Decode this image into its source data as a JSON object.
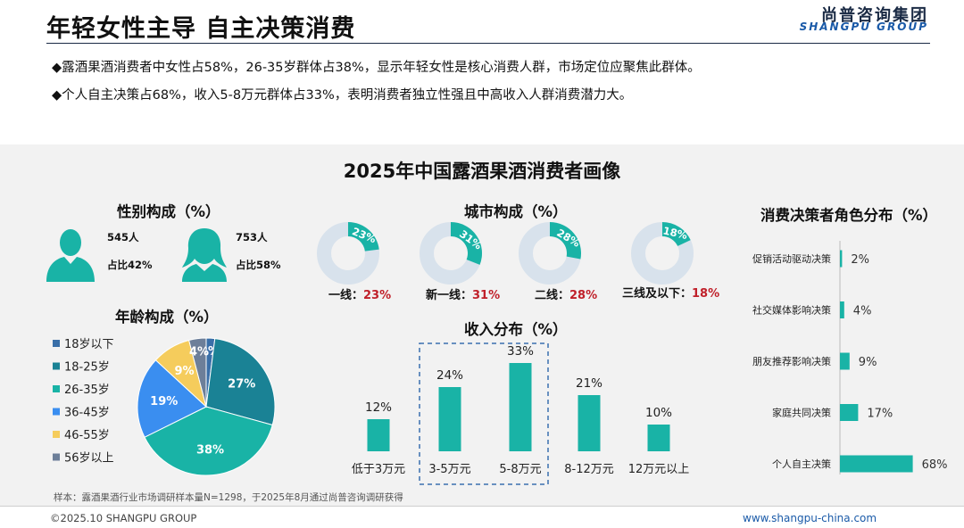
{
  "header": {
    "title": "年轻女性主导 自主决策消费",
    "brand_cn": "尚普咨询集团",
    "brand_en": "SHANGPU GROUP"
  },
  "bullets": [
    "◆露酒果酒消费者中女性占58%，26-35岁群体占38%，显示年轻女性是核心消费人群，市场定位应聚焦此群体。",
    "◆个人自主决策占68%，收入5-8万元群体占33%，表明消费者独立性强且中高收入人群消费潜力大。"
  ],
  "panel_title": "2025年中国露酒果酒消费者画像",
  "gender": {
    "title": "性别构成（%）",
    "male_count": "545人",
    "male_share": "占比42%",
    "female_count": "753人",
    "female_share": "占比58%"
  },
  "city_title": "城市构成（%）",
  "income_title": "收入分布（%）",
  "age_title": "年龄构成（%）",
  "role_title": "消费决策者角色分布（%）",
  "footnote": "样本：露酒果酒行业市场调研样本量N=1298，于2025年8月通过尚普咨询调研获得",
  "footer": {
    "copyright": "©2025.10 SHANGPU GROUP",
    "website": "www.shangpu-china.com"
  },
  "colors": {
    "teal": "#19b3a6",
    "ring": "#d8e2ec",
    "red": "#c0202a",
    "age": [
      "#3a6fa8",
      "#1a8295",
      "#19b3a6",
      "#3a8ef0",
      "#f5cc5c",
      "#6d7f99"
    ]
  },
  "chart_data": [
    {
      "type": "pie",
      "title": "城市构成（%）",
      "categories": [
        "一线",
        "新一线",
        "二线",
        "三线及以下"
      ],
      "label_texts": [
        "一线：",
        "新一线：",
        "二线：",
        "三线及以下："
      ],
      "values": [
        23,
        31,
        28,
        18
      ],
      "value_labels": [
        "23%",
        "31%",
        "28%",
        "18%"
      ]
    },
    {
      "type": "pie",
      "title": "年龄构成（%）",
      "categories": [
        "18岁以下",
        "18-25岁",
        "26-35岁",
        "36-45岁",
        "46-55岁",
        "56岁以上"
      ],
      "values": [
        2,
        27,
        38,
        19,
        9,
        4
      ],
      "value_labels": [
        "2%",
        "27%",
        "38%",
        "19%",
        "9%",
        "4%"
      ],
      "legend_position": "left"
    },
    {
      "type": "bar",
      "title": "收入分布（%）",
      "categories": [
        "低于3万元",
        "3-5万元",
        "5-8万元",
        "8-12万元",
        "12万元以上"
      ],
      "values": [
        12,
        24,
        33,
        21,
        10
      ],
      "value_labels": [
        "12%",
        "24%",
        "33%",
        "21%",
        "10%"
      ],
      "highlighted": [
        "3-5万元",
        "5-8万元"
      ]
    },
    {
      "type": "bar",
      "orientation": "horizontal",
      "title": "消费决策者角色分布（%）",
      "categories": [
        "促销活动驱动决策",
        "社交媒体影响决策",
        "朋友推荐影响决策",
        "家庭共同决策",
        "个人自主决策"
      ],
      "values": [
        2,
        4,
        9,
        17,
        68
      ],
      "value_labels": [
        "2%",
        "4%",
        "9%",
        "17%",
        "68%"
      ]
    }
  ]
}
